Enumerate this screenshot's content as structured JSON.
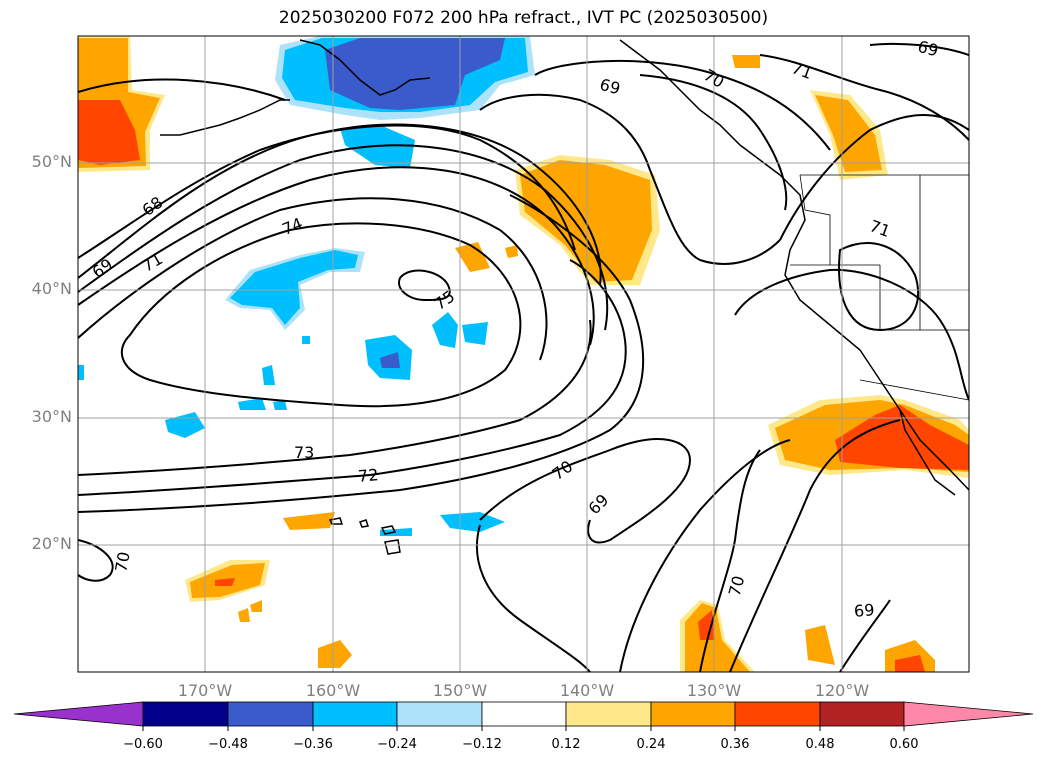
{
  "title": "2025030200 F072 200 hPa refract., IVT PC (2025030500)",
  "lat_labels": [
    "50°N",
    "40°N",
    "30°N",
    "20°N"
  ],
  "lon_labels": [
    "170°W",
    "160°W",
    "150°W",
    "140°W",
    "130°W",
    "120°W"
  ],
  "colorbar": {
    "ticks": [
      "−0.60",
      "−0.48",
      "−0.36",
      "−0.24",
      "−0.12",
      "0.12",
      "0.24",
      "0.36",
      "0.48",
      "0.60"
    ],
    "colors": [
      "#9932CC",
      "#00008B",
      "#3A5BCC",
      "#00BFFF",
      "#ADE3FA",
      "#FFFFFF",
      "#FFE88A",
      "#FFA500",
      "#FF4500",
      "#B22222",
      "#FF88AA"
    ]
  },
  "contour_labels": [
    "68",
    "69",
    "71",
    "74",
    "75",
    "73",
    "72",
    "70",
    "69",
    "70",
    "69",
    "70",
    "71",
    "69",
    "71",
    "70",
    "69"
  ]
}
